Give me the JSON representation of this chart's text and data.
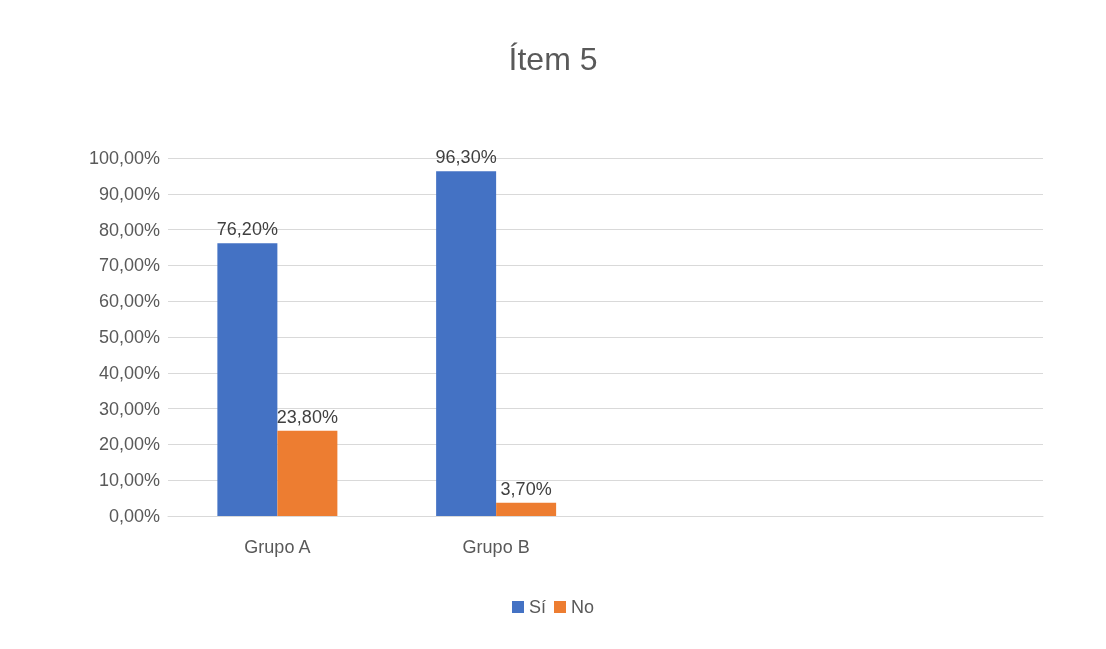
{
  "chart_data": {
    "type": "bar",
    "title": "Ítem 5",
    "categories": [
      "Grupo A",
      "Grupo B",
      null,
      null
    ],
    "series": [
      {
        "name": "Sí",
        "color": "#4472c4",
        "values": [
          76.2,
          96.3,
          null,
          null
        ],
        "value_labels": [
          "76,20%",
          "96,30%",
          null,
          null
        ]
      },
      {
        "name": "No",
        "color": "#ed7d31",
        "values": [
          23.8,
          3.7,
          null,
          null
        ],
        "value_labels": [
          "23,80%",
          "3,70%",
          null,
          null
        ]
      }
    ],
    "ylim": [
      0,
      100
    ],
    "yticks": [
      {
        "value": 0,
        "label": "0,00%"
      },
      {
        "value": 10,
        "label": "10,00%"
      },
      {
        "value": 20,
        "label": "20,00%"
      },
      {
        "value": 30,
        "label": "30,00%"
      },
      {
        "value": 40,
        "label": "40,00%"
      },
      {
        "value": 50,
        "label": "50,00%"
      },
      {
        "value": 60,
        "label": "60,00%"
      },
      {
        "value": 70,
        "label": "70,00%"
      },
      {
        "value": 80,
        "label": "80,00%"
      },
      {
        "value": 90,
        "label": "90,00%"
      },
      {
        "value": 100,
        "label": "100,00%"
      }
    ],
    "grid": "y",
    "legend": "bottom"
  }
}
